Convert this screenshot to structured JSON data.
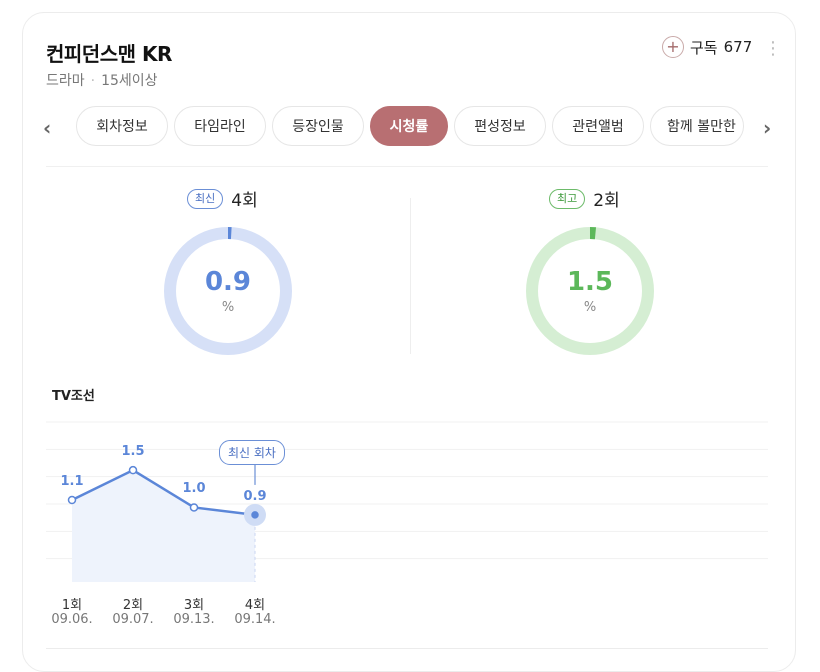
{
  "header": {
    "title": "컨피던스맨 KR",
    "genre": "드라마",
    "rating": "15세이상",
    "subscribe_label": "구독",
    "subscribe_count": "677",
    "more_glyph": "⋮"
  },
  "tabs": {
    "prev": "‹",
    "next": "›",
    "items": [
      {
        "label": "회차정보"
      },
      {
        "label": "타임라인"
      },
      {
        "label": "등장인물"
      },
      {
        "label": "시청률"
      },
      {
        "label": "편성정보"
      },
      {
        "label": "관련앨범"
      },
      {
        "label": "함께 볼만한"
      }
    ],
    "active_index": 3
  },
  "stats": {
    "latest": {
      "badge": "최신",
      "episode": "4회",
      "value": "0.9",
      "unit": "%",
      "percent": 0.9,
      "color": "#5b86d8",
      "track": "#d6e0f7"
    },
    "best": {
      "badge": "최고",
      "episode": "2회",
      "value": "1.5",
      "unit": "%",
      "percent": 1.5,
      "color": "#5cb85a",
      "track": "#d5eed3"
    }
  },
  "broadcaster": "TV조선",
  "chart_data": {
    "type": "line",
    "categories": [
      "1회",
      "2회",
      "3회",
      "4회"
    ],
    "dates": [
      "09.06.",
      "09.07.",
      "09.13.",
      "09.14."
    ],
    "values": [
      1.1,
      1.5,
      1.0,
      0.9
    ],
    "value_labels": [
      "1.1",
      "1.5",
      "1.0",
      "0.9"
    ],
    "annotation": "최신 회차",
    "annotated_index": 3,
    "line_color": "#5b86d8",
    "fill_color": "#eef3fc",
    "grid": true
  }
}
